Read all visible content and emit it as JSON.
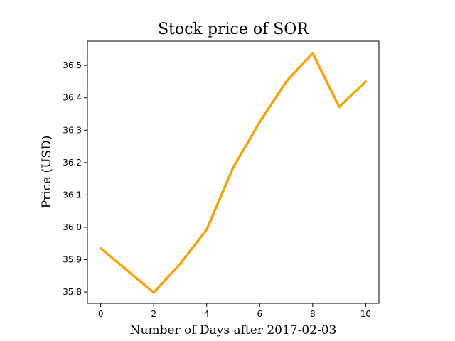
{
  "chart_data": {
    "type": "line",
    "title": "Stock price of SOR",
    "xlabel": "Number of Days after 2017-02-03",
    "ylabel": "Price (USD)",
    "xlim": [
      -0.5,
      10.5
    ],
    "ylim": [
      35.765,
      36.575
    ],
    "xticks": [
      0,
      2,
      4,
      6,
      8,
      10
    ],
    "yticks": [
      35.8,
      35.9,
      36.0,
      36.1,
      36.2,
      36.3,
      36.4,
      36.5
    ],
    "grid": false,
    "series": [
      {
        "color": "#f5a30a",
        "x": [
          0,
          1,
          2,
          3,
          4,
          5,
          6,
          7,
          8,
          9,
          10
        ],
        "y": [
          35.935,
          35.867,
          35.798,
          35.887,
          35.993,
          36.185,
          36.325,
          36.45,
          36.538,
          36.372,
          36.45
        ]
      }
    ]
  }
}
